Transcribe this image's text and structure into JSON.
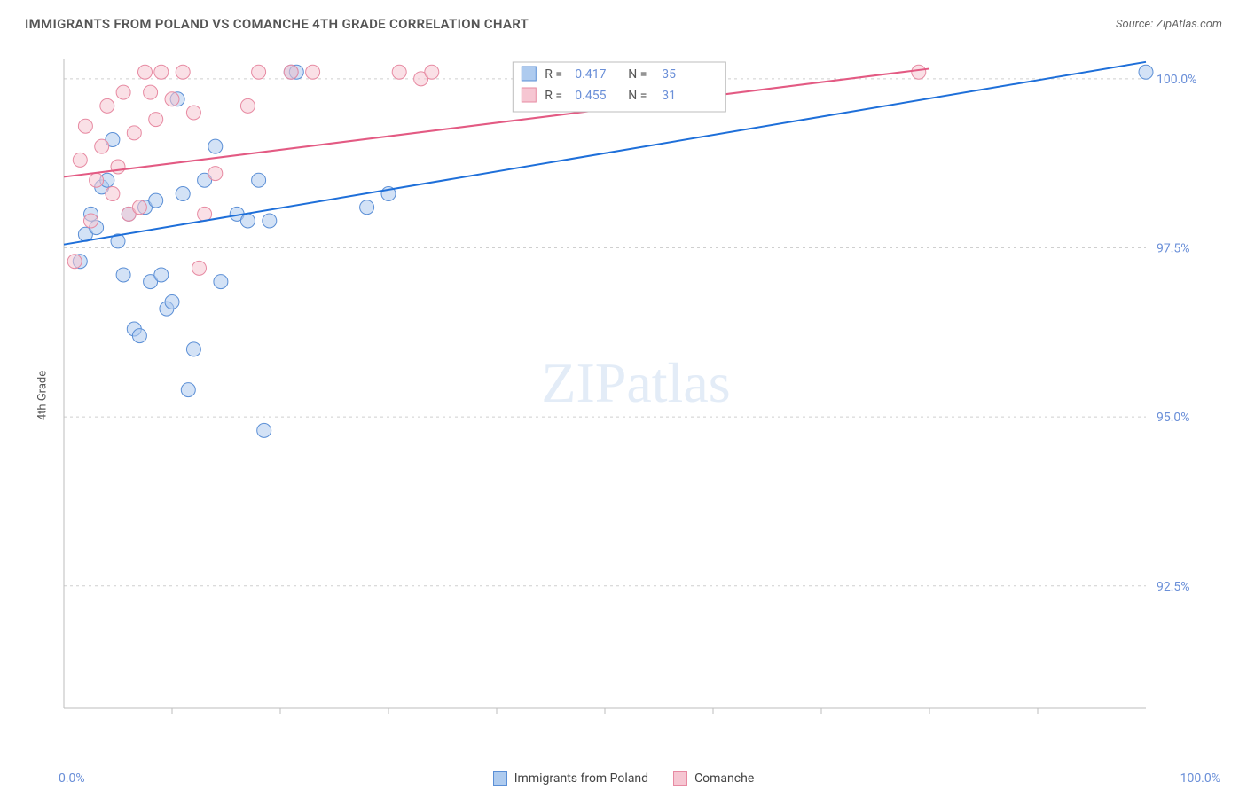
{
  "title": "IMMIGRANTS FROM POLAND VS COMANCHE 4TH GRADE CORRELATION CHART",
  "source": "Source: ZipAtlas.com",
  "ylabel": "4th Grade",
  "watermark": "ZIPatlas",
  "chart": {
    "type": "scatter-with-regression",
    "background_color": "#ffffff",
    "grid_color": "#cfcfcf",
    "axis_color": "#bdbdbd",
    "tick_label_color": "#6a8fd8",
    "xlim": [
      0,
      100
    ],
    "ylim": [
      90.7,
      100.3
    ],
    "x_ticks_minor": [
      10,
      20,
      30,
      40,
      50,
      60,
      70,
      80,
      90
    ],
    "y_gridlines": [
      92.5,
      95.0,
      97.5,
      100.0
    ],
    "y_tick_labels": [
      "92.5%",
      "95.0%",
      "97.5%",
      "100.0%"
    ],
    "x_min_label": "0.0%",
    "x_max_label": "100.0%",
    "marker_radius": 8,
    "marker_opacity": 0.55,
    "line_width": 2,
    "series": [
      {
        "name": "Immigrants from Poland",
        "color_fill": "#aecbef",
        "color_stroke": "#5b8fd6",
        "line_color": "#1e6fd9",
        "R": "0.417",
        "N": "35",
        "regression": {
          "x1": 0,
          "y1": 97.55,
          "x2": 100,
          "y2": 100.25
        },
        "points": [
          [
            1.5,
            97.3
          ],
          [
            2,
            97.7
          ],
          [
            2.5,
            98.0
          ],
          [
            3,
            97.8
          ],
          [
            3.5,
            98.4
          ],
          [
            4,
            98.5
          ],
          [
            4.5,
            99.1
          ],
          [
            5,
            97.6
          ],
          [
            5.5,
            97.1
          ],
          [
            6,
            98.0
          ],
          [
            6.5,
            96.3
          ],
          [
            7,
            96.2
          ],
          [
            7.5,
            98.1
          ],
          [
            8,
            97.0
          ],
          [
            8.5,
            98.2
          ],
          [
            9,
            97.1
          ],
          [
            9.5,
            96.6
          ],
          [
            10,
            96.7
          ],
          [
            10.5,
            99.7
          ],
          [
            11,
            98.3
          ],
          [
            11.5,
            95.4
          ],
          [
            12,
            96.0
          ],
          [
            13,
            98.5
          ],
          [
            14,
            99.0
          ],
          [
            14.5,
            97.0
          ],
          [
            16,
            98.0
          ],
          [
            17,
            97.9
          ],
          [
            18,
            98.5
          ],
          [
            18.5,
            94.8
          ],
          [
            19,
            97.9
          ],
          [
            21,
            100.1
          ],
          [
            21.5,
            100.1
          ],
          [
            28,
            98.1
          ],
          [
            30,
            98.3
          ],
          [
            100,
            100.1
          ]
        ]
      },
      {
        "name": "Comanche",
        "color_fill": "#f6c6d2",
        "color_stroke": "#e78aa2",
        "line_color": "#e35a83",
        "R": "0.455",
        "N": "31",
        "regression": {
          "x1": 0,
          "y1": 98.55,
          "x2": 80,
          "y2": 100.15
        },
        "points": [
          [
            1,
            97.3
          ],
          [
            1.5,
            98.8
          ],
          [
            2,
            99.3
          ],
          [
            2.5,
            97.9
          ],
          [
            3,
            98.5
          ],
          [
            3.5,
            99.0
          ],
          [
            4,
            99.6
          ],
          [
            4.5,
            98.3
          ],
          [
            5,
            98.7
          ],
          [
            5.5,
            99.8
          ],
          [
            6,
            98.0
          ],
          [
            6.5,
            99.2
          ],
          [
            7,
            98.1
          ],
          [
            7.5,
            100.1
          ],
          [
            8,
            99.8
          ],
          [
            8.5,
            99.4
          ],
          [
            9,
            100.1
          ],
          [
            10,
            99.7
          ],
          [
            11,
            100.1
          ],
          [
            12,
            99.5
          ],
          [
            12.5,
            97.2
          ],
          [
            13,
            98.0
          ],
          [
            14,
            98.6
          ],
          [
            17,
            99.6
          ],
          [
            18,
            100.1
          ],
          [
            21,
            100.1
          ],
          [
            23,
            100.1
          ],
          [
            31,
            100.1
          ],
          [
            33,
            100.0
          ],
          [
            34,
            100.1
          ],
          [
            79,
            100.1
          ]
        ]
      }
    ],
    "stats_box": {
      "border_color": "#bdbdbd",
      "text_color": "#555",
      "value_color": "#6a8fd8",
      "labels": {
        "R": "R =",
        "N": "N ="
      }
    }
  },
  "bottom_legend": [
    {
      "label": "Immigrants from Poland",
      "fill": "#aecbef",
      "stroke": "#5b8fd6"
    },
    {
      "label": "Comanche",
      "fill": "#f6c6d2",
      "stroke": "#e78aa2"
    }
  ]
}
